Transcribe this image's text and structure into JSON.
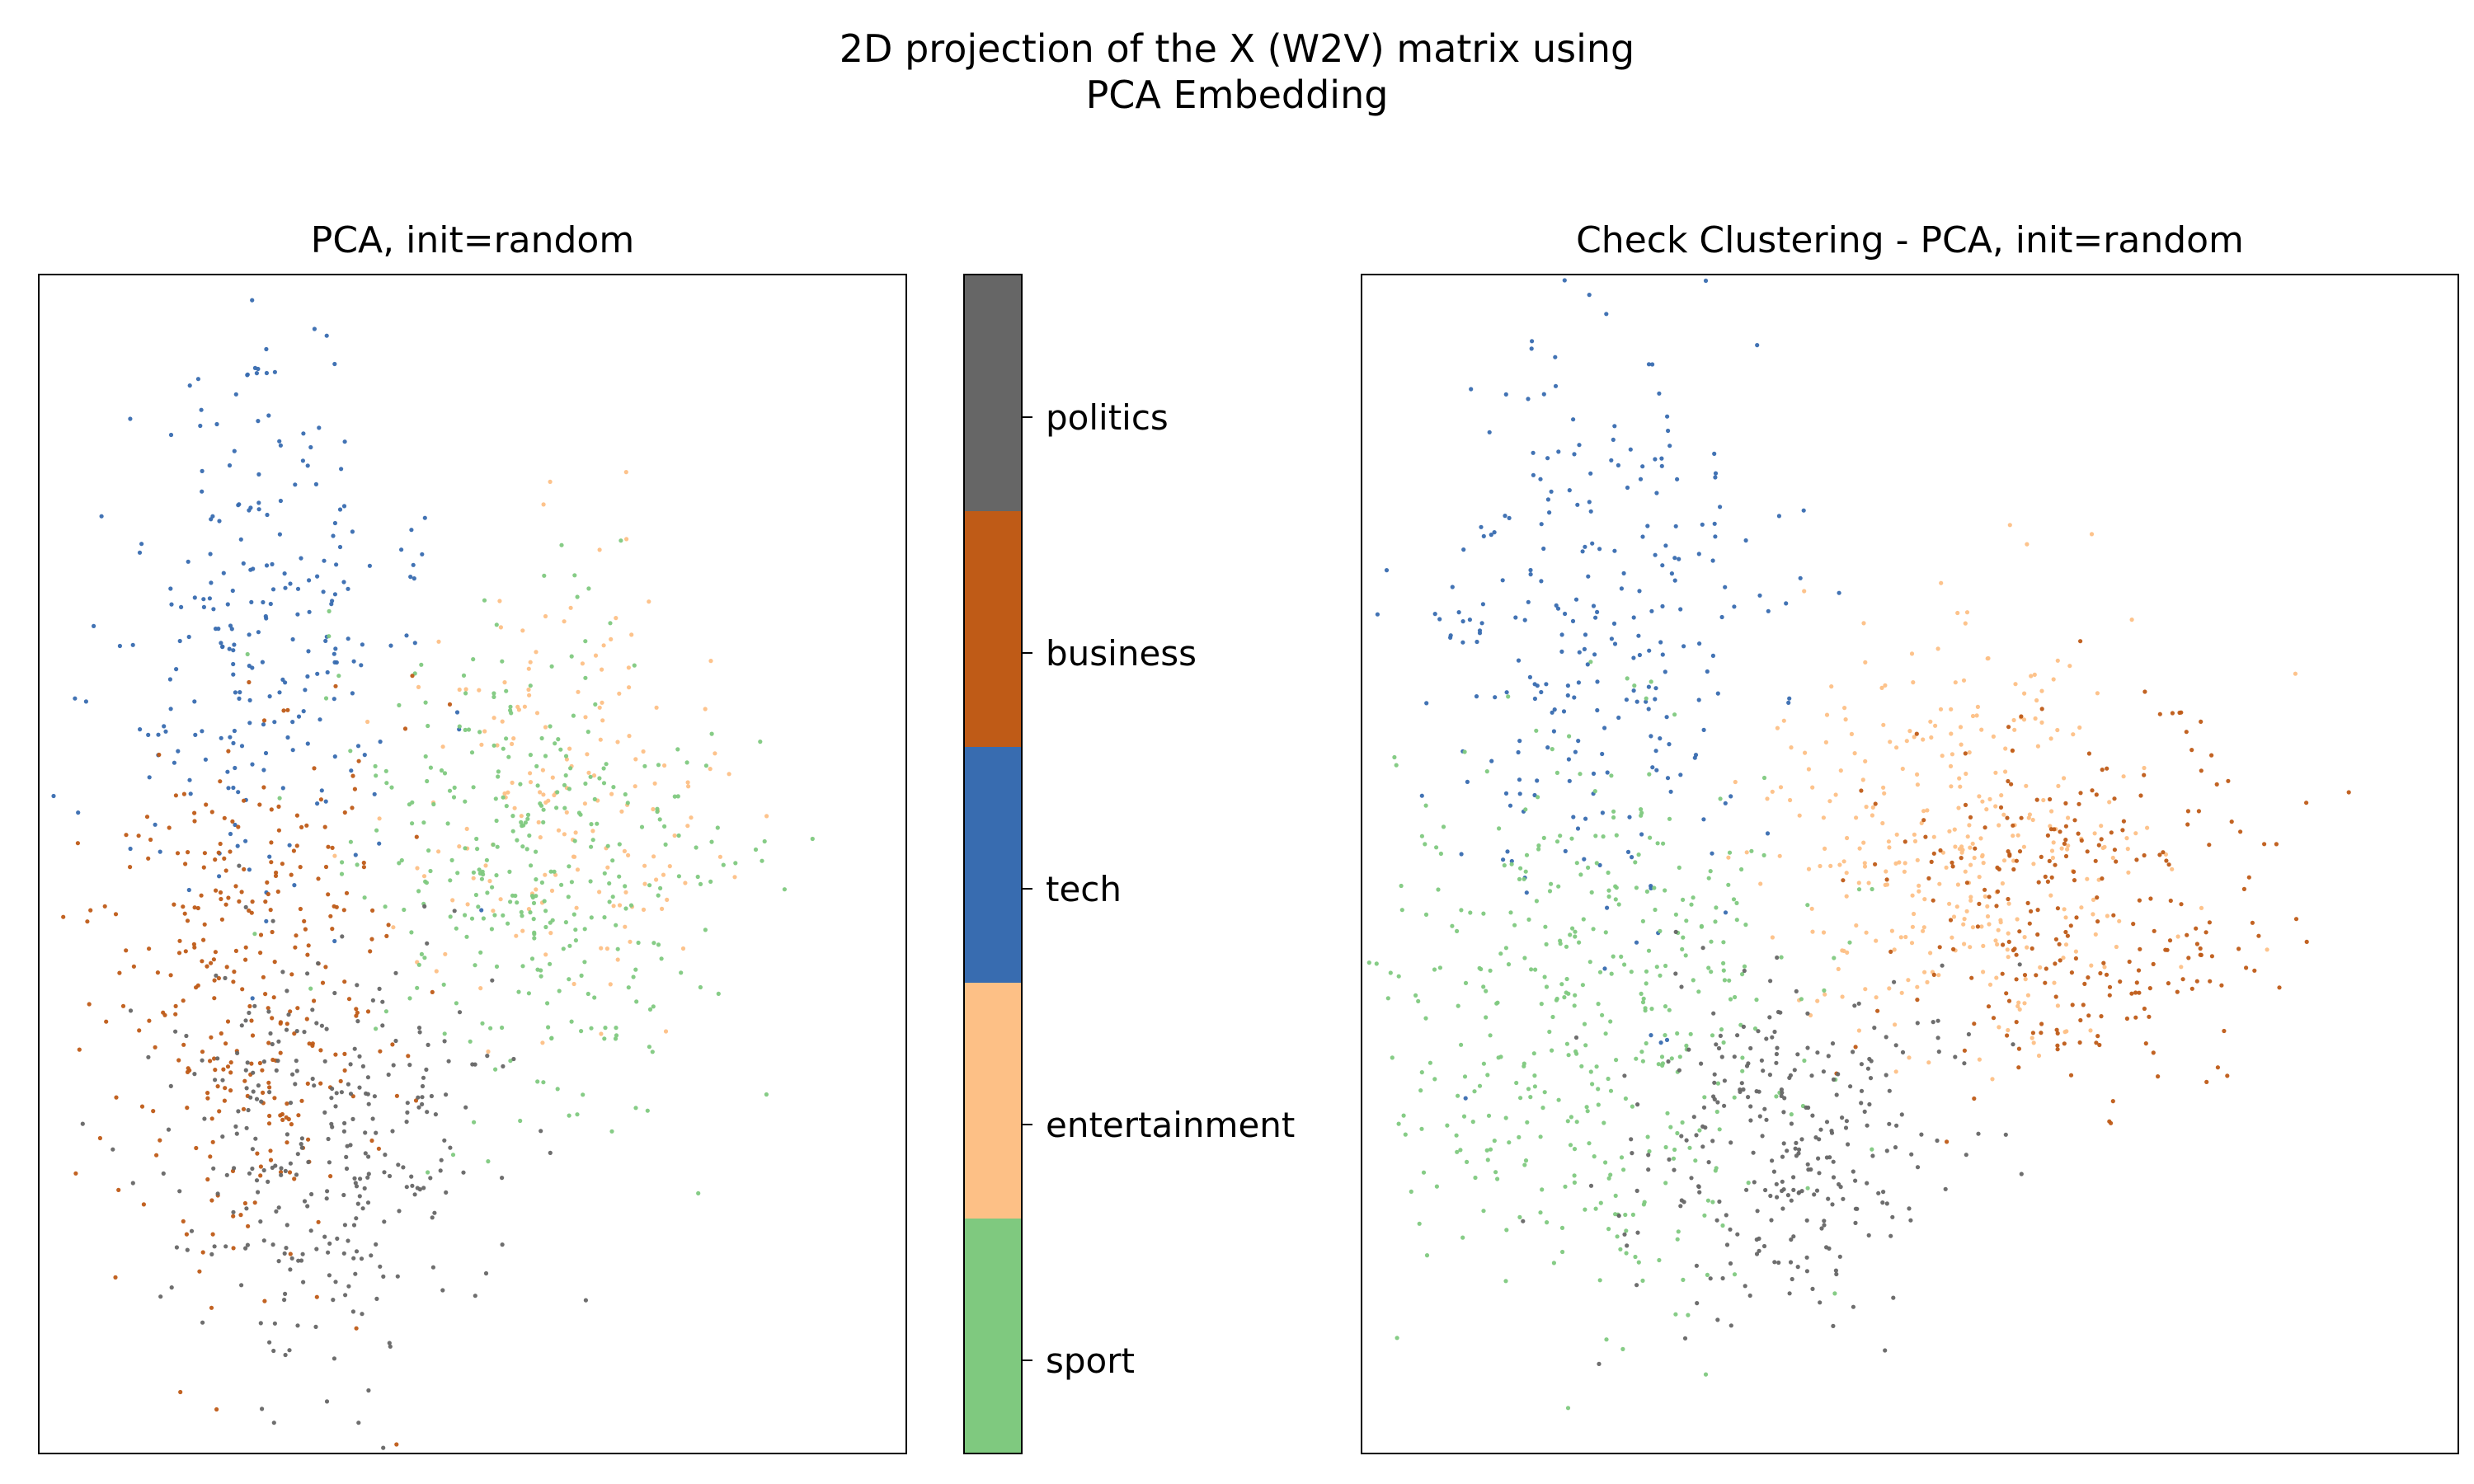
{
  "suptitle_line1": "2D projection of the X (W2V) matrix using",
  "suptitle_line2": "PCA Embedding",
  "categories": [
    {
      "name": "sport",
      "color": "#7fc97f"
    },
    {
      "name": "entertainment",
      "color": "#fdc086"
    },
    {
      "name": "tech",
      "color": "#386cb0"
    },
    {
      "name": "business",
      "color": "#bf5b17"
    },
    {
      "name": "politics",
      "color": "#666666"
    }
  ],
  "chart_data": [
    {
      "type": "scatter",
      "title": "PCA, init=random",
      "xlabel": "",
      "ylabel": "",
      "ticks_visible": false,
      "xlim": [
        0,
        100
      ],
      "ylim": [
        0,
        100
      ],
      "series": [
        {
          "name": "tech",
          "color": "#386cb0",
          "clusters": [
            {
              "cx": 25,
              "cy": 69,
              "sx": 9,
              "sy": 12,
              "n": 240
            }
          ]
        },
        {
          "name": "entertainment",
          "color": "#fdc086",
          "clusters": [
            {
              "cx": 60,
              "cy": 56,
              "sx": 9,
              "sy": 9,
              "n": 180
            }
          ]
        },
        {
          "name": "sport",
          "color": "#7fc97f",
          "clusters": [
            {
              "cx": 58,
              "cy": 49,
              "sx": 11,
              "sy": 11,
              "n": 340
            }
          ]
        },
        {
          "name": "business",
          "color": "#bf5b17",
          "clusters": [
            {
              "cx": 23,
              "cy": 40,
              "sx": 9,
              "sy": 13,
              "n": 320
            }
          ]
        },
        {
          "name": "politics",
          "color": "#666666",
          "clusters": [
            {
              "cx": 34,
              "cy": 26,
              "sx": 10,
              "sy": 9,
              "n": 300
            }
          ]
        }
      ]
    },
    {
      "type": "scatter",
      "title": "Check Clustering - PCA, init=random",
      "xlabel": "",
      "ylabel": "",
      "ticks_visible": false,
      "xlim": [
        0,
        100
      ],
      "ylim": [
        0,
        100
      ],
      "series": [
        {
          "name": "tech",
          "color": "#386cb0",
          "clusters": [
            {
              "cx": 21,
              "cy": 69,
              "sx": 8,
              "sy": 12,
              "n": 260
            }
          ]
        },
        {
          "name": "entertainment",
          "color": "#fdc086",
          "clusters": [
            {
              "cx": 55,
              "cy": 52,
              "sx": 9,
              "sy": 9,
              "n": 340
            }
          ]
        },
        {
          "name": "sport",
          "color": "#7fc97f",
          "clusters": [
            {
              "cx": 21,
              "cy": 37,
              "sx": 10,
              "sy": 12,
              "n": 420
            }
          ]
        },
        {
          "name": "business",
          "color": "#bf5b17",
          "clusters": [
            {
              "cx": 66,
              "cy": 46,
              "sx": 8,
              "sy": 9,
              "n": 260
            }
          ]
        },
        {
          "name": "politics",
          "color": "#666666",
          "clusters": [
            {
              "cx": 38,
              "cy": 27,
              "sx": 8,
              "sy": 8,
              "n": 280
            }
          ]
        }
      ]
    }
  ]
}
